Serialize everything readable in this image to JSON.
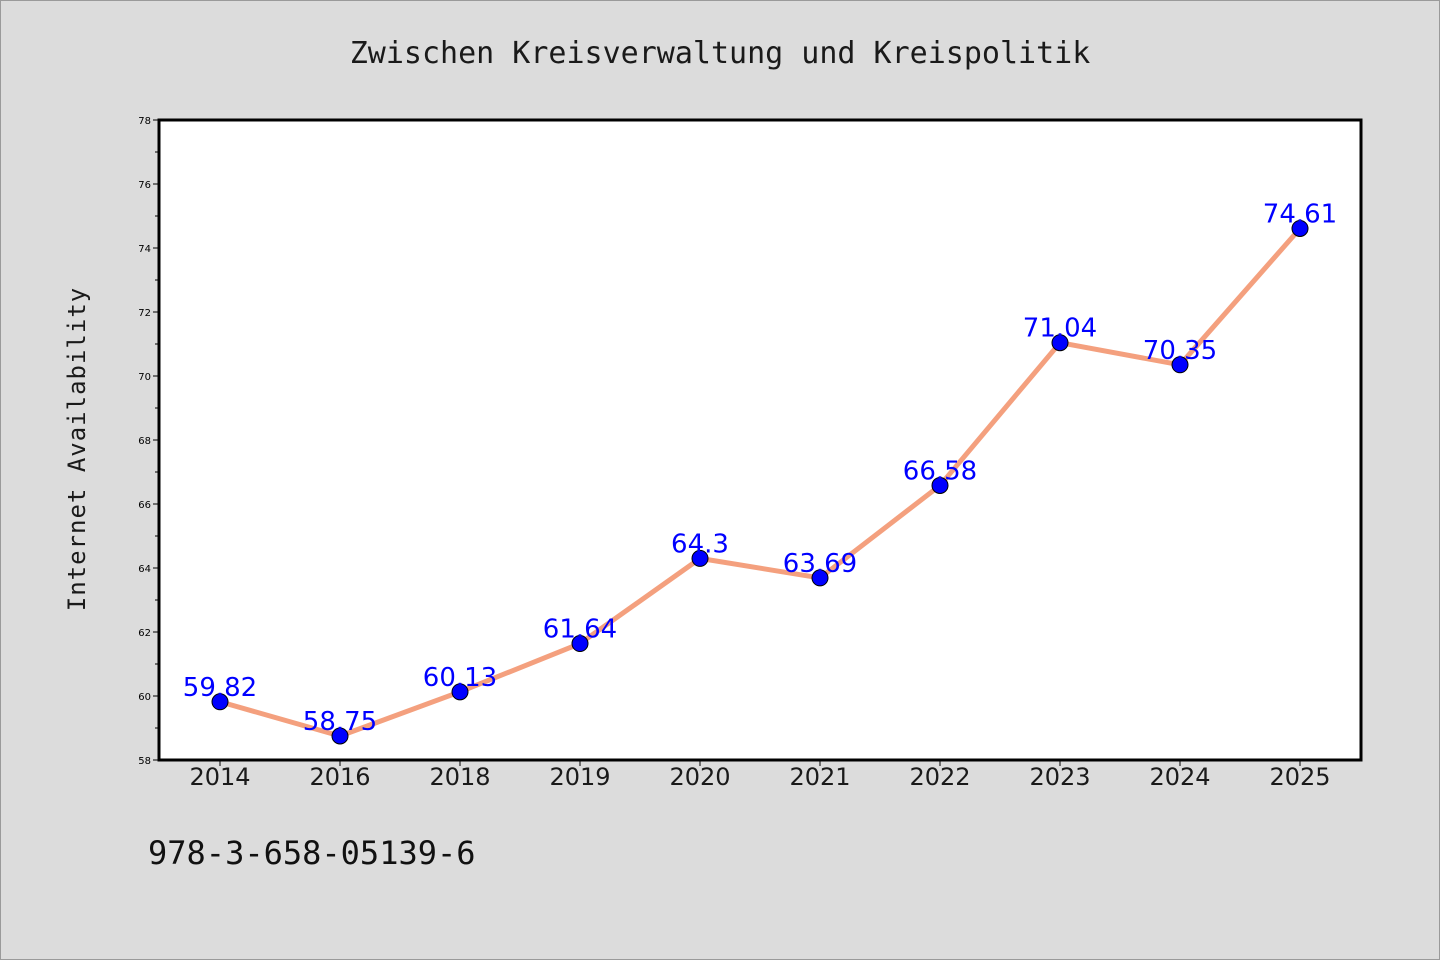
{
  "chart_data": {
    "type": "line",
    "title": "Zwischen Kreisverwaltung und Kreispolitik",
    "xlabel": "",
    "ylabel": "Internet Availability",
    "categories": [
      "2014",
      "2016",
      "2018",
      "2019",
      "2020",
      "2021",
      "2022",
      "2023",
      "2024",
      "2025"
    ],
    "values": [
      59.82,
      58.75,
      60.13,
      61.64,
      64.3,
      63.69,
      66.58,
      71.04,
      70.35,
      74.61
    ],
    "data_labels": [
      "59.82",
      "58.75",
      "60.13",
      "61.64",
      "64.3",
      "63.69",
      "66.58",
      "71.04",
      "70.35",
      "74.61"
    ],
    "ylim": [
      58,
      78
    ],
    "yticks": [
      58,
      60,
      62,
      64,
      66,
      68,
      70,
      72,
      74,
      76,
      78
    ],
    "grid": false,
    "colors": {
      "line": "#f4a07e",
      "marker": "#0000ff",
      "label": "#0000ff",
      "plot_background": "#ffffff",
      "page_background": "#dcdcdc"
    }
  },
  "footer": {
    "isbn": "978-3-658-05139-6"
  }
}
